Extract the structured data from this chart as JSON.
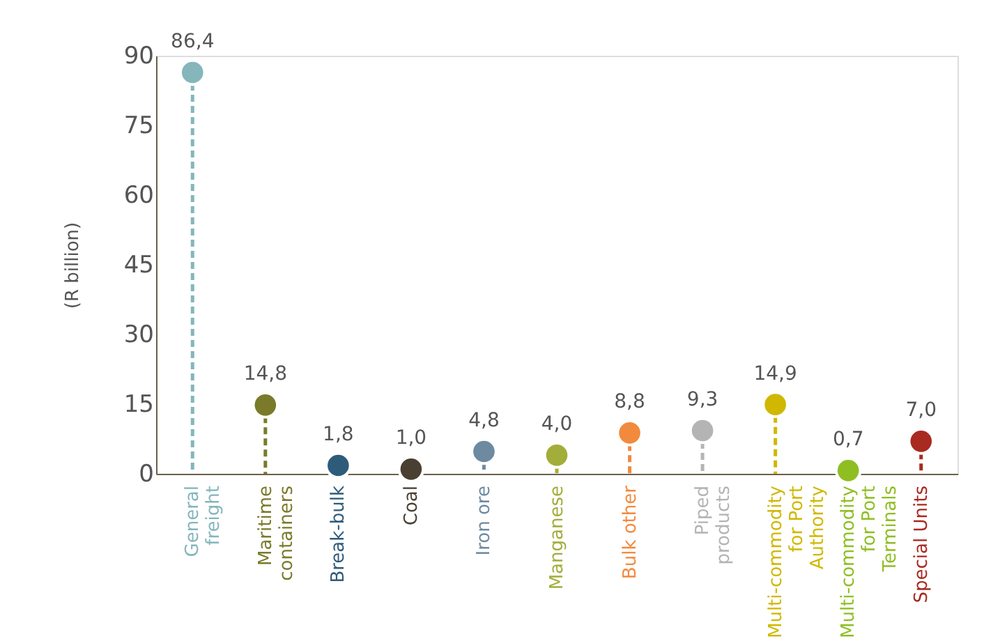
{
  "chart_data": {
    "type": "lollipop",
    "ylabel": "(R billion)",
    "categories": [
      "General\nfreight",
      "Maritime\ncontainers",
      "Break-bulk",
      "Coal",
      "Iron ore",
      "Manganese",
      "Bulk other",
      "Piped\nproducts",
      "Multi-commodity\nfor Port\nAuthority",
      "Multi-commodity\nfor Port\nTerminals",
      "Special Units"
    ],
    "values": [
      86.4,
      14.8,
      1.8,
      1.0,
      4.8,
      4.0,
      8.8,
      9.3,
      14.9,
      0.7,
      7.0
    ],
    "value_labels": [
      "86,4",
      "14,8",
      "1,8",
      "1,0",
      "4,8",
      "4,0",
      "8,8",
      "9,3",
      "14,9",
      "0,7",
      "7,0"
    ],
    "colors": [
      "#84b6bc",
      "#7a7a2a",
      "#2f5b7a",
      "#4a4032",
      "#6e8aa0",
      "#a3ad3a",
      "#f28a3e",
      "#b4b4b4",
      "#d0b800",
      "#8fbe22",
      "#a82a20"
    ],
    "ylim": [
      0,
      90
    ],
    "yticks": [
      0,
      15,
      30,
      45,
      60,
      75,
      90
    ],
    "line_style": "dashed",
    "marker": "circle",
    "grid": false
  }
}
